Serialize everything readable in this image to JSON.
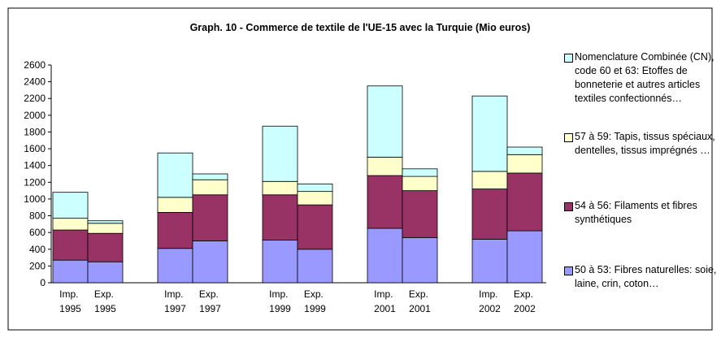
{
  "chart_data": {
    "type": "stacked_bar",
    "title": "Graph. 10 - Commerce de textile de l'UE-15 avec la Turquie (Mio euros)",
    "categories": [
      "Imp. 1995",
      "Exp. 1995",
      "Imp. 1997",
      "Exp. 1997",
      "Imp. 1999",
      "Exp. 1999",
      "Imp. 2001",
      "Exp. 2001",
      "Imp. 2002",
      "Exp. 2002"
    ],
    "series": [
      {
        "name": "50 à 53: Fibres naturelles: soie, laine, crin, coton…",
        "color": "#9999ff",
        "values": [
          270,
          250,
          410,
          500,
          510,
          400,
          650,
          540,
          520,
          620
        ]
      },
      {
        "name": "54 à 56: Filaments et fibres synthétiques",
        "color": "#993366",
        "values": [
          360,
          340,
          430,
          550,
          540,
          530,
          630,
          560,
          600,
          690
        ]
      },
      {
        "name": "57 à 59: Tapis, tissus spéciaux, dentelles, tissus imprégnés …",
        "color": "#ffffcc",
        "values": [
          140,
          120,
          180,
          180,
          160,
          160,
          220,
          170,
          210,
          220
        ]
      },
      {
        "name": "Nomenclature Combinée (CN), code 60 et 63: Etoffes de bonneterie et autres articles textiles confectionnés…",
        "color": "#ccffff",
        "values": [
          310,
          30,
          530,
          70,
          660,
          90,
          850,
          90,
          900,
          90
        ]
      }
    ],
    "ylim": [
      0,
      2600
    ],
    "yticks": [
      0,
      200,
      400,
      600,
      800,
      1000,
      1200,
      1400,
      1600,
      1800,
      2000,
      2200,
      2400,
      2600
    ]
  }
}
